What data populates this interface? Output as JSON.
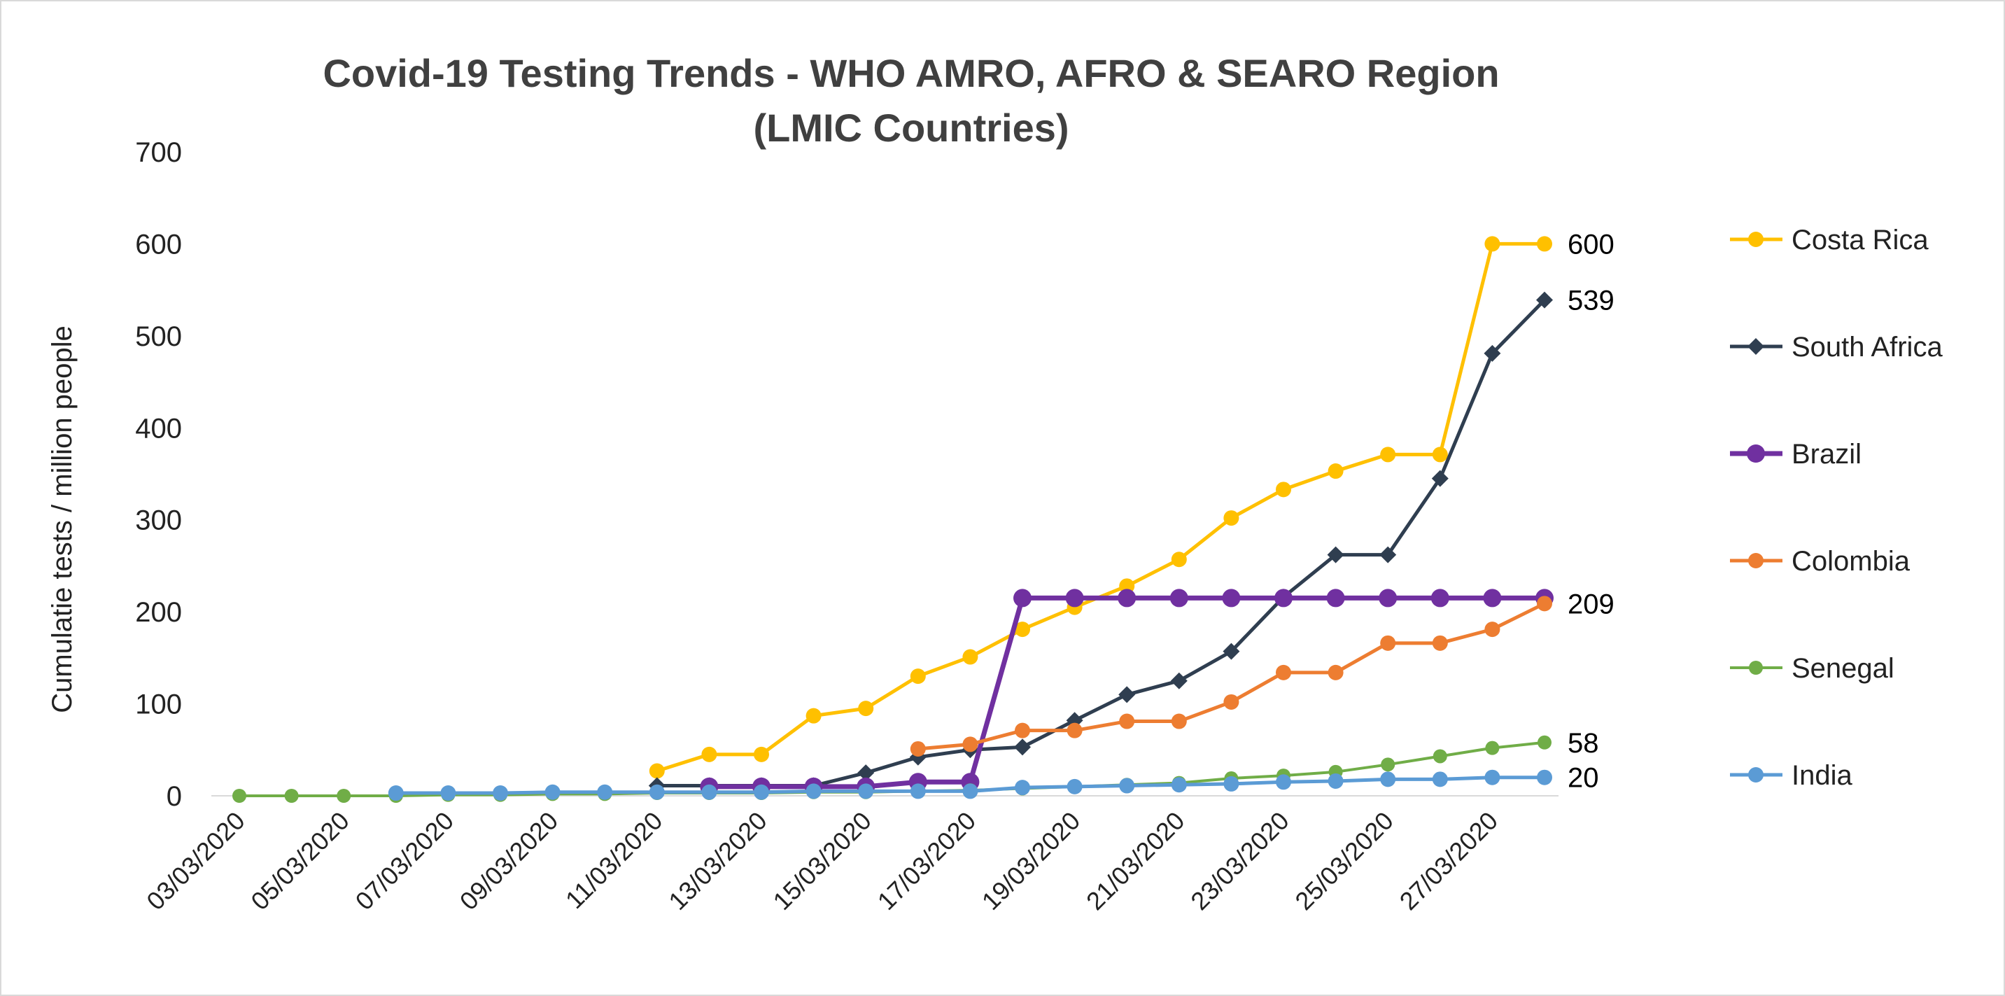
{
  "chart_data": {
    "type": "line",
    "title_lines": [
      "Covid-19 Testing Trends - WHO AMRO, AFRO &  SEARO Region",
      "(LMIC Countries)"
    ],
    "ylabel": "Cumulatie tests / million people",
    "xlabel": "",
    "ylim": [
      0,
      700
    ],
    "yticks": [
      0,
      100,
      200,
      300,
      400,
      500,
      600,
      700
    ],
    "x": [
      "03/03/2020",
      "04/03/2020",
      "05/03/2020",
      "06/03/2020",
      "07/03/2020",
      "08/03/2020",
      "09/03/2020",
      "10/03/2020",
      "11/03/2020",
      "12/03/2020",
      "13/03/2020",
      "14/03/2020",
      "15/03/2020",
      "16/03/2020",
      "17/03/2020",
      "18/03/2020",
      "19/03/2020",
      "20/03/2020",
      "21/03/2020",
      "22/03/2020",
      "23/03/2020",
      "24/03/2020",
      "25/03/2020",
      "26/03/2020",
      "27/03/2020",
      "28/03/2020"
    ],
    "xtick_labels": [
      "03/03/2020",
      "05/03/2020",
      "07/03/2020",
      "09/03/2020",
      "11/03/2020",
      "13/03/2020",
      "15/03/2020",
      "17/03/2020",
      "19/03/2020",
      "21/03/2020",
      "23/03/2020",
      "25/03/2020",
      "27/03/2020"
    ],
    "grid": false,
    "legend_position": "right",
    "series": [
      {
        "name": "Costa Rica",
        "color": "#FFC000",
        "marker": "circle",
        "values": [
          null,
          null,
          null,
          null,
          null,
          null,
          null,
          null,
          27,
          45,
          45,
          87,
          95,
          130,
          151,
          181,
          205,
          228,
          257,
          302,
          333,
          353,
          371,
          371,
          600,
          600
        ],
        "end_label": "600"
      },
      {
        "name": "South Africa",
        "color": "#2F3E50",
        "marker": "diamond",
        "values": [
          null,
          null,
          null,
          null,
          null,
          null,
          null,
          null,
          11,
          11,
          11,
          11,
          25,
          42,
          50,
          53,
          82,
          110,
          125,
          157,
          216,
          262,
          262,
          345,
          481,
          539
        ],
        "end_label": "539"
      },
      {
        "name": "Brazil",
        "color": "#7030A0",
        "marker": "circle-large",
        "values": [
          null,
          null,
          null,
          null,
          null,
          null,
          null,
          null,
          null,
          10,
          10,
          10,
          10,
          15,
          15,
          215,
          215,
          215,
          215,
          215,
          215,
          215,
          215,
          215,
          215,
          215
        ],
        "end_label": ""
      },
      {
        "name": "Colombia",
        "color": "#ED7D31",
        "marker": "circle",
        "values": [
          null,
          null,
          null,
          null,
          null,
          null,
          null,
          null,
          null,
          null,
          null,
          null,
          null,
          51,
          56,
          71,
          71,
          81,
          81,
          102,
          134,
          134,
          166,
          166,
          181,
          209
        ],
        "end_label": "209"
      },
      {
        "name": "Senegal",
        "color": "#70AD47",
        "marker": "circle-small",
        "values": [
          0,
          0,
          0,
          0,
          1,
          1,
          2,
          2,
          3,
          3,
          3,
          4,
          4,
          5,
          6,
          8,
          10,
          12,
          14,
          19,
          22,
          26,
          34,
          43,
          52,
          58
        ],
        "end_label": "58"
      },
      {
        "name": "India",
        "color": "#5B9BD5",
        "marker": "circle",
        "values": [
          null,
          null,
          null,
          3,
          3,
          3,
          4,
          4,
          4,
          4,
          4,
          5,
          5,
          5,
          5,
          9,
          10,
          11,
          12,
          13,
          15,
          16,
          18,
          18,
          20,
          20
        ],
        "end_label": "20"
      }
    ]
  }
}
